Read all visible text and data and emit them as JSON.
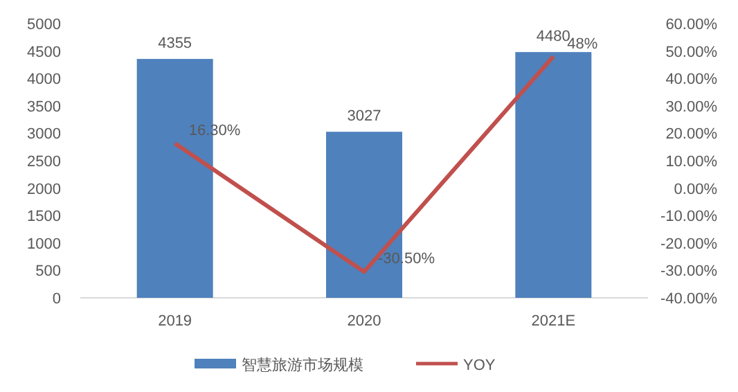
{
  "chart_data": {
    "type": "bar",
    "categories": [
      "2019",
      "2020",
      "2021E"
    ],
    "series": [
      {
        "name": "智慧旅游市场规模",
        "color": "#4f81bd",
        "values": [
          4355,
          3027,
          4480
        ],
        "value_labels": [
          "4355",
          "3027",
          "4480"
        ]
      },
      {
        "name": "YOY",
        "type": "line",
        "axis": "y2",
        "color": "#c0504d",
        "values": [
          16.3,
          -30.5,
          48
        ],
        "value_labels": [
          "16.30%",
          "-30.50%",
          "48%"
        ]
      }
    ],
    "ylim": [
      0,
      5000
    ],
    "yticks": [
      0,
      500,
      1000,
      1500,
      2000,
      2500,
      3000,
      3500,
      4000,
      4500,
      5000
    ],
    "y2lim": [
      -40,
      60
    ],
    "y2ticks": [
      {
        "value": -40,
        "label": "-40.00%"
      },
      {
        "value": -30,
        "label": "-30.00%"
      },
      {
        "value": -20,
        "label": "-20.00%"
      },
      {
        "value": -10,
        "label": "-10.00%"
      },
      {
        "value": 0,
        "label": "0.00%"
      },
      {
        "value": 10,
        "label": "10.00%"
      },
      {
        "value": 20,
        "label": "20.00%"
      },
      {
        "value": 30,
        "label": "30.00%"
      },
      {
        "value": 40,
        "label": "40.00%"
      },
      {
        "value": 50,
        "label": "50.00%"
      },
      {
        "value": 60,
        "label": "60.00%"
      }
    ],
    "legend": "bottom",
    "line_style": "solid",
    "marker": "none"
  }
}
